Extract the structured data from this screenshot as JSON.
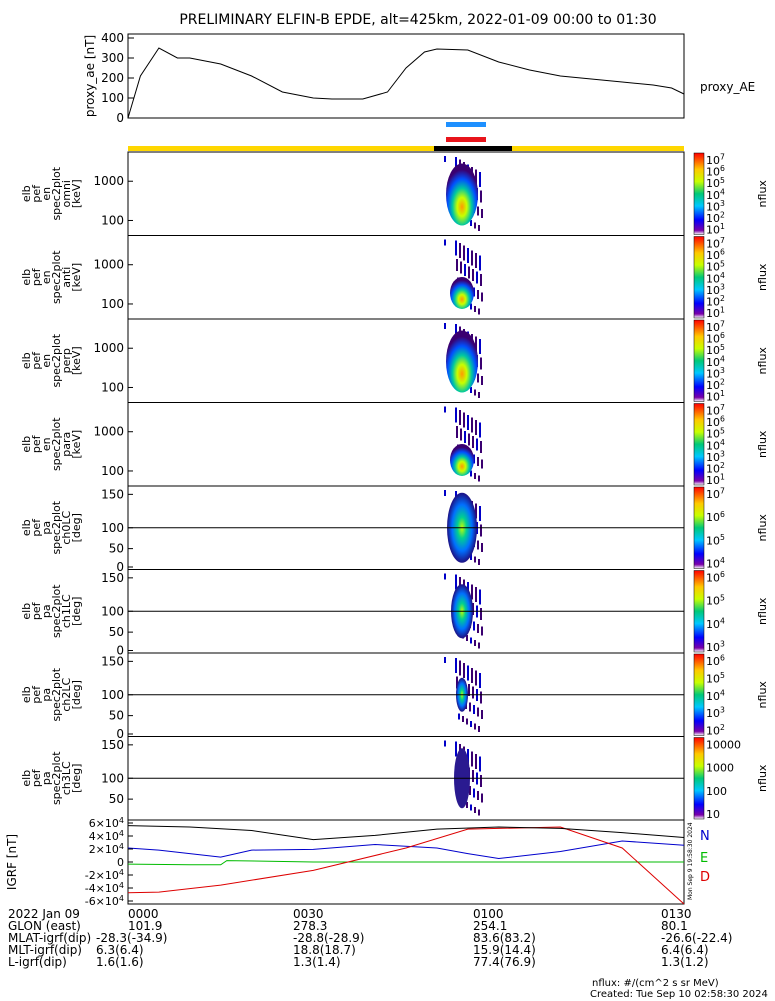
{
  "title": "PRELIMINARY ELFIN-B EPDE, alt=425km, 2022-01-09 00:00 to 01:30",
  "chart_data": [
    {
      "type": "line",
      "name": "proxy_ae",
      "ylabel": "proxy_ae [nT]",
      "legend": "proxy_AE",
      "yticks": [
        "400",
        "300",
        "200",
        "100",
        "0"
      ],
      "ytick_values": [
        400,
        300,
        200,
        100,
        0
      ],
      "ylim": [
        0,
        420
      ],
      "x_minutes": [
        0,
        2,
        5,
        8,
        10,
        15,
        20,
        25,
        30,
        33,
        38,
        42,
        45,
        48,
        50,
        55,
        60,
        65,
        70,
        75,
        80,
        85,
        88,
        90
      ],
      "y": [
        0,
        210,
        350,
        300,
        300,
        270,
        210,
        130,
        100,
        95,
        95,
        130,
        250,
        330,
        345,
        340,
        280,
        240,
        210,
        195,
        180,
        165,
        150,
        120
      ]
    },
    {
      "type": "bar",
      "name": "ephemeris-bars",
      "bar_colors": {
        "blue": "#1e90ff",
        "red": "#e8141b",
        "black": "#000000",
        "yellow": "#ffd700"
      }
    },
    {
      "type": "heatmap",
      "name": "spectrograms",
      "panels": [
        {
          "id": "omni",
          "ylabel": [
            "elb",
            "pef",
            "en",
            "spec2plot",
            "omni",
            "[keV]"
          ],
          "yticks": [
            "1000",
            "100"
          ],
          "ctick": [
            "10^7",
            "10^6",
            "10^5",
            "10^4",
            "10^3",
            "10^2",
            "10^1"
          ],
          "ctitle": "nflux"
        },
        {
          "id": "anti",
          "ylabel": [
            "elb",
            "pef",
            "en",
            "spec2plot",
            "anti",
            "[keV]"
          ],
          "yticks": [
            "1000",
            "100"
          ],
          "ctick": [
            "10^7",
            "10^6",
            "10^5",
            "10^4",
            "10^3",
            "10^2",
            "10^1"
          ],
          "ctitle": "nflux"
        },
        {
          "id": "perp",
          "ylabel": [
            "elb",
            "pef",
            "en",
            "spec2plot",
            "perp",
            "[keV]"
          ],
          "yticks": [
            "1000",
            "100"
          ],
          "ctick": [
            "10^7",
            "10^6",
            "10^5",
            "10^4",
            "10^3",
            "10^2",
            "10^1"
          ],
          "ctitle": "nflux"
        },
        {
          "id": "para",
          "ylabel": [
            "elb",
            "pef",
            "en",
            "spec2plot",
            "para",
            "[keV]"
          ],
          "yticks": [
            "1000",
            "100"
          ],
          "ctick": [
            "10^7",
            "10^6",
            "10^5",
            "10^4",
            "10^3",
            "10^2",
            "10^1"
          ],
          "ctitle": "nflux"
        },
        {
          "id": "ch0LC",
          "ylabel": [
            "elb",
            "pef",
            "pa",
            "spec2plot",
            "ch0LC",
            "[deg]"
          ],
          "yticks": [
            "150",
            "100",
            "50",
            "0"
          ],
          "ctick": [
            "10^7",
            "10^6",
            "10^5",
            "10^4"
          ],
          "ctitle": "nflux"
        },
        {
          "id": "ch1LC",
          "ylabel": [
            "elb",
            "pef",
            "pa",
            "spec2plot",
            "ch1LC",
            "[deg]"
          ],
          "yticks": [
            "150",
            "100",
            "50",
            "0"
          ],
          "ctick": [
            "10^6",
            "10^5",
            "10^4",
            "10^3"
          ],
          "ctitle": "nflux"
        },
        {
          "id": "ch2LC",
          "ylabel": [
            "elb",
            "pef",
            "pa",
            "spec2plot",
            "ch2LC",
            "[deg]"
          ],
          "yticks": [
            "150",
            "100",
            "50",
            "0"
          ],
          "ctick": [
            "10^6",
            "10^5",
            "10^4",
            "10^3",
            "10^2"
          ],
          "ctitle": "nflux"
        },
        {
          "id": "ch3LC",
          "ylabel": [
            "elb",
            "pef",
            "pa",
            "spec2plot",
            "ch3LC",
            "[deg]"
          ],
          "yticks": [
            "150",
            "100",
            "50"
          ],
          "ctick": [
            "10000",
            "1000",
            "100",
            "10"
          ],
          "ctitle": "nflux"
        }
      ]
    },
    {
      "type": "line",
      "name": "igrf",
      "ylabel": "IGRF [nT]",
      "yticks": [
        "6×10^4",
        "4×10^4",
        "2×10^4",
        "0",
        "-2×10^4",
        "-4×10^4",
        "-6×10^4"
      ],
      "ylim": [
        -60000,
        60000
      ],
      "legend": [
        "N",
        "E",
        "D"
      ],
      "side_text": "Mon Sep 9 19:58:30 2024",
      "series": [
        {
          "name": "N",
          "color": "#0000cc",
          "x_minutes": [
            0,
            5,
            10,
            15,
            20,
            30,
            40,
            50,
            55,
            60,
            70,
            80,
            90
          ],
          "y": [
            20000,
            17000,
            12000,
            7000,
            17000,
            18000,
            25000,
            20000,
            12000,
            5000,
            15000,
            30000,
            24000
          ]
        },
        {
          "name": "E",
          "color": "#00bb00",
          "x_minutes": [
            0,
            10,
            15,
            16,
            30,
            50,
            70,
            90
          ],
          "y": [
            -3000,
            -4000,
            -4000,
            2000,
            0,
            0,
            0,
            0
          ]
        },
        {
          "name": "D",
          "color": "#dd0000",
          "x_minutes": [
            0,
            5,
            15,
            30,
            45,
            55,
            60,
            70,
            80,
            90
          ],
          "y": [
            -44000,
            -43000,
            -33000,
            -12000,
            20000,
            47000,
            48000,
            50000,
            20000,
            -60000
          ]
        },
        {
          "name": "total",
          "color": "#000000",
          "x_minutes": [
            0,
            10,
            20,
            30,
            40,
            50,
            60,
            70,
            80,
            90
          ],
          "y": [
            52000,
            50000,
            45000,
            32000,
            38000,
            47000,
            50000,
            48000,
            42000,
            35000
          ]
        }
      ]
    }
  ],
  "footer": {
    "rows": [
      {
        "label": "2022 Jan 09",
        "v": [
          "0000",
          "0030",
          "0100",
          "0130"
        ]
      },
      {
        "label": "GLON (east)",
        "v": [
          "101.9",
          "278.3",
          "254.1",
          "80.1"
        ]
      },
      {
        "label": "MLAT-igrf(dip)",
        "v": [
          "-28.3(-34.9)",
          "-28.8(-28.9)",
          "83.6(83.2)",
          "-26.6(-22.4)"
        ]
      },
      {
        "label": "MLT-igrf(dip)",
        "v": [
          "6.3(6.4)",
          "18.8(18.7)",
          "15.9(14.4)",
          "6.4(6.4)"
        ]
      },
      {
        "label": "L-igrf(dip)",
        "v": [
          "1.6(1.6)",
          "1.3(1.4)",
          "77.4(76.9)",
          "1.3(1.2)"
        ]
      }
    ],
    "units": "nflux: #/(cm^2 s sr MeV)",
    "created": "Created: Tue Sep 10 02:58:30 2024"
  }
}
